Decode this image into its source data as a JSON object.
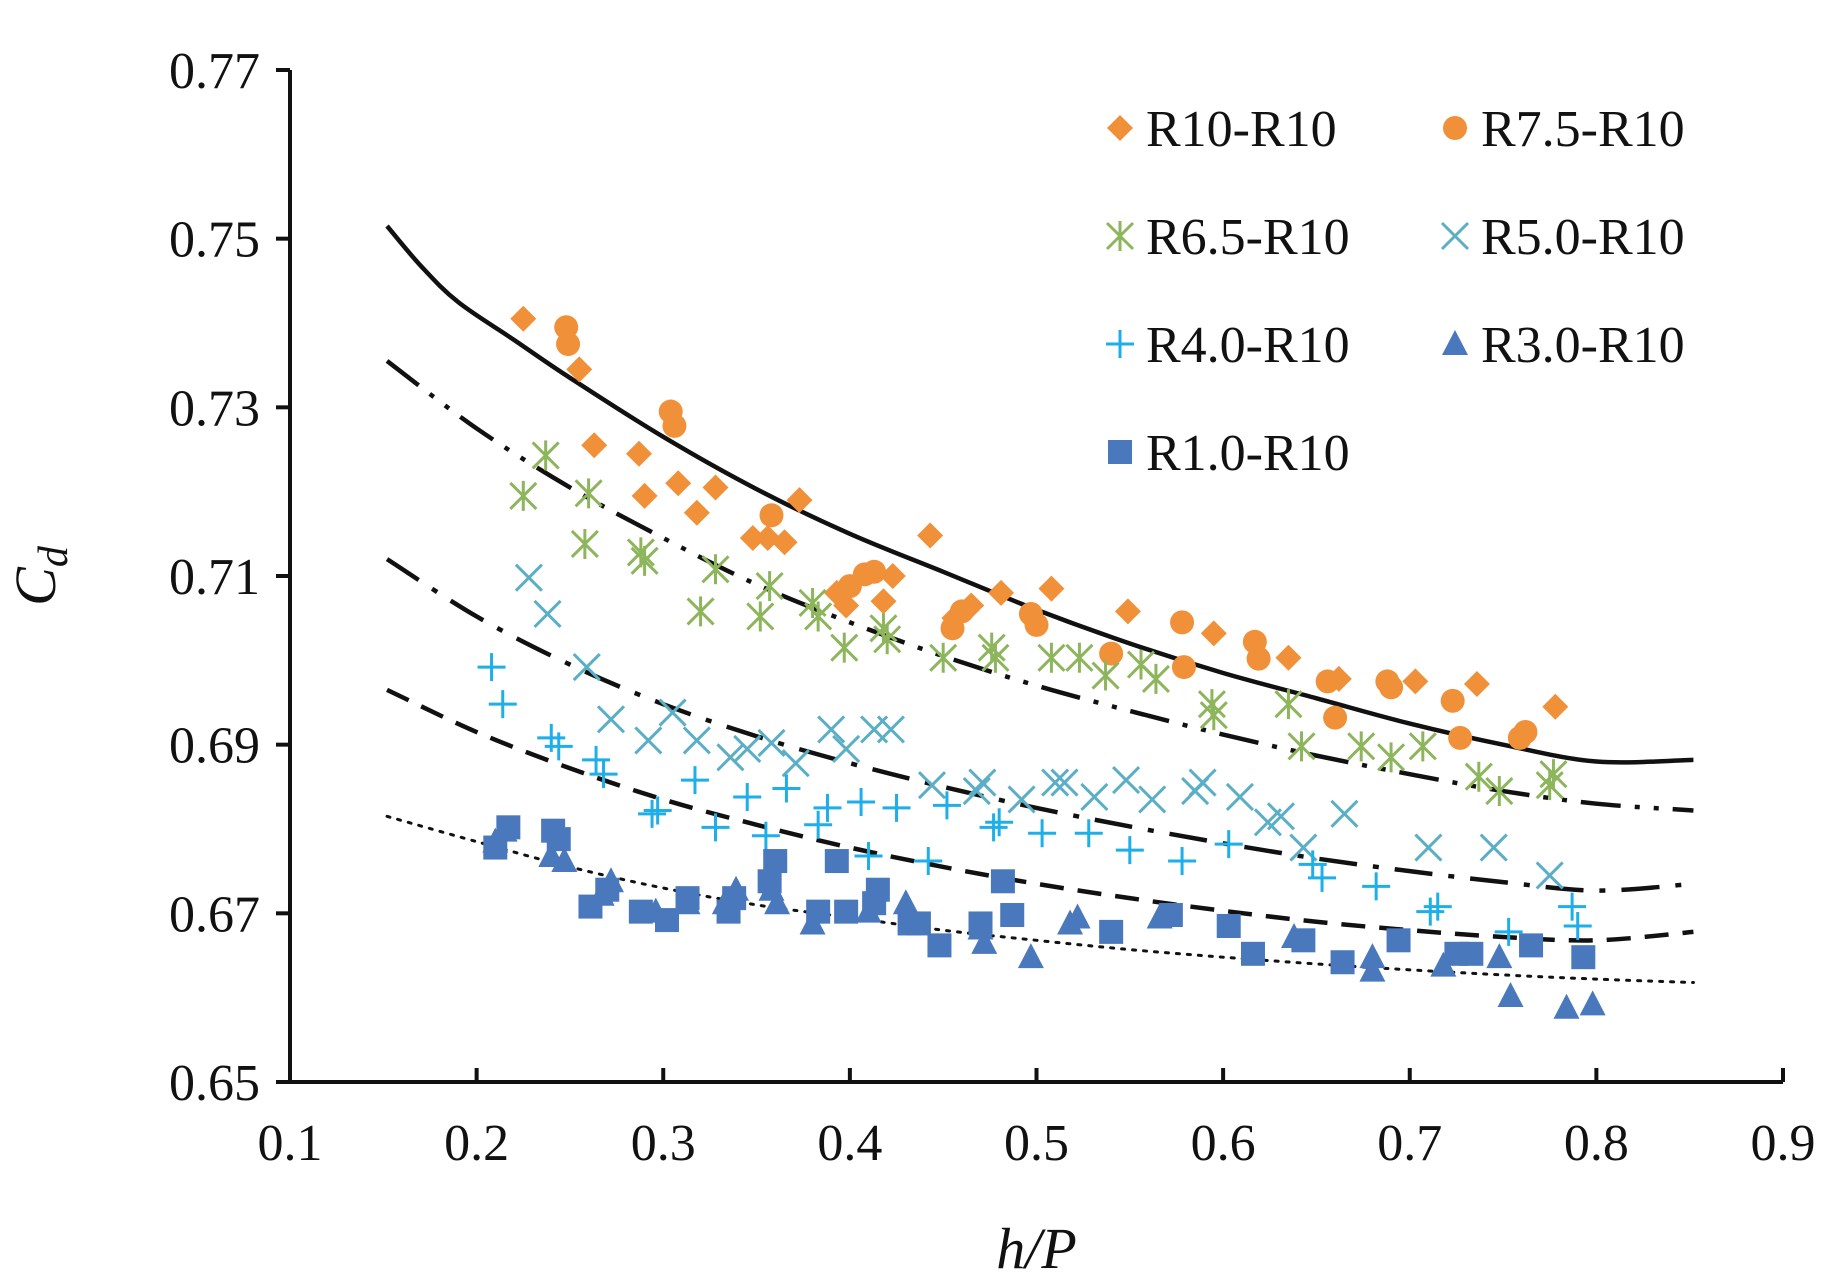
{
  "chart_data": {
    "type": "scatter",
    "title": "",
    "xlabel": "h/P",
    "ylabel": "C_d",
    "ylabel_main": "C",
    "ylabel_sub": "d",
    "xlim": [
      0.1,
      0.9
    ],
    "ylim": [
      0.65,
      0.77
    ],
    "xticks": [
      "0.1",
      "0.2",
      "0.3",
      "0.4",
      "0.5",
      "0.6",
      "0.7",
      "0.8",
      "0.9"
    ],
    "yticks": [
      "0.65",
      "0.67",
      "0.69",
      "0.71",
      "0.73",
      "0.75",
      "0.77"
    ],
    "grid": false,
    "legend_position": "top-right",
    "series": [
      {
        "name": "R10-R10",
        "marker": "diamond",
        "color": "#f0913a",
        "points": [
          [
            0.225,
            0.7405
          ],
          [
            0.255,
            0.7345
          ],
          [
            0.263,
            0.7255
          ],
          [
            0.287,
            0.7245
          ],
          [
            0.29,
            0.7195
          ],
          [
            0.308,
            0.721
          ],
          [
            0.318,
            0.7175
          ],
          [
            0.328,
            0.7205
          ],
          [
            0.348,
            0.7145
          ],
          [
            0.356,
            0.7145
          ],
          [
            0.365,
            0.714
          ],
          [
            0.373,
            0.719
          ],
          [
            0.393,
            0.708
          ],
          [
            0.398,
            0.7065
          ],
          [
            0.418,
            0.707
          ],
          [
            0.423,
            0.71
          ],
          [
            0.443,
            0.7148
          ],
          [
            0.456,
            0.705
          ],
          [
            0.465,
            0.7065
          ],
          [
            0.481,
            0.708
          ],
          [
            0.508,
            0.7085
          ],
          [
            0.549,
            0.7058
          ],
          [
            0.595,
            0.7032
          ],
          [
            0.635,
            0.7003
          ],
          [
            0.662,
            0.6978
          ],
          [
            0.703,
            0.6975
          ],
          [
            0.736,
            0.6972
          ],
          [
            0.778,
            0.6945
          ]
        ]
      },
      {
        "name": "R7.5-R10",
        "marker": "circle",
        "color": "#f0913a",
        "points": [
          [
            0.248,
            0.7395
          ],
          [
            0.249,
            0.7375
          ],
          [
            0.304,
            0.7295
          ],
          [
            0.306,
            0.7278
          ],
          [
            0.358,
            0.7172
          ],
          [
            0.4,
            0.7088
          ],
          [
            0.408,
            0.7102
          ],
          [
            0.413,
            0.7105
          ],
          [
            0.455,
            0.7038
          ],
          [
            0.46,
            0.7058
          ],
          [
            0.497,
            0.7055
          ],
          [
            0.5,
            0.7042
          ],
          [
            0.54,
            0.7008
          ],
          [
            0.578,
            0.7045
          ],
          [
            0.579,
            0.6992
          ],
          [
            0.617,
            0.7022
          ],
          [
            0.619,
            0.7002
          ],
          [
            0.656,
            0.6975
          ],
          [
            0.66,
            0.6932
          ],
          [
            0.688,
            0.6975
          ],
          [
            0.69,
            0.6968
          ],
          [
            0.723,
            0.6952
          ],
          [
            0.727,
            0.6908
          ],
          [
            0.759,
            0.6908
          ],
          [
            0.762,
            0.6915
          ]
        ]
      },
      {
        "name": "R6.5-R10",
        "marker": "asterisk",
        "color": "#8db65c",
        "points": [
          [
            0.225,
            0.7195
          ],
          [
            0.237,
            0.7243
          ],
          [
            0.258,
            0.7138
          ],
          [
            0.26,
            0.7198
          ],
          [
            0.288,
            0.7128
          ],
          [
            0.29,
            0.7118
          ],
          [
            0.32,
            0.7058
          ],
          [
            0.328,
            0.7108
          ],
          [
            0.352,
            0.7052
          ],
          [
            0.357,
            0.7088
          ],
          [
            0.38,
            0.7068
          ],
          [
            0.383,
            0.7052
          ],
          [
            0.397,
            0.7015
          ],
          [
            0.418,
            0.7038
          ],
          [
            0.42,
            0.7025
          ],
          [
            0.45,
            0.7003
          ],
          [
            0.476,
            0.7015
          ],
          [
            0.478,
            0.7003
          ],
          [
            0.508,
            0.7003
          ],
          [
            0.523,
            0.7003
          ],
          [
            0.537,
            0.6982
          ],
          [
            0.556,
            0.6995
          ],
          [
            0.564,
            0.6978
          ],
          [
            0.594,
            0.6948
          ],
          [
            0.595,
            0.6935
          ],
          [
            0.635,
            0.6948
          ],
          [
            0.642,
            0.6898
          ],
          [
            0.674,
            0.6898
          ],
          [
            0.69,
            0.6885
          ],
          [
            0.707,
            0.6898
          ],
          [
            0.737,
            0.6862
          ],
          [
            0.748,
            0.6845
          ],
          [
            0.775,
            0.6852
          ],
          [
            0.777,
            0.6865
          ]
        ]
      },
      {
        "name": "R5.0-R10",
        "marker": "x",
        "color": "#5aafc6",
        "points": [
          [
            0.228,
            0.7098
          ],
          [
            0.238,
            0.7055
          ],
          [
            0.259,
            0.6992
          ],
          [
            0.272,
            0.693
          ],
          [
            0.292,
            0.6905
          ],
          [
            0.305,
            0.6938
          ],
          [
            0.318,
            0.6905
          ],
          [
            0.336,
            0.6885
          ],
          [
            0.345,
            0.6895
          ],
          [
            0.358,
            0.6902
          ],
          [
            0.371,
            0.6878
          ],
          [
            0.39,
            0.6918
          ],
          [
            0.398,
            0.6895
          ],
          [
            0.413,
            0.6918
          ],
          [
            0.422,
            0.6918
          ],
          [
            0.444,
            0.6852
          ],
          [
            0.468,
            0.6845
          ],
          [
            0.471,
            0.6855
          ],
          [
            0.492,
            0.6835
          ],
          [
            0.51,
            0.6855
          ],
          [
            0.515,
            0.6855
          ],
          [
            0.531,
            0.6838
          ],
          [
            0.548,
            0.6858
          ],
          [
            0.562,
            0.6835
          ],
          [
            0.585,
            0.6845
          ],
          [
            0.589,
            0.6855
          ],
          [
            0.609,
            0.6838
          ],
          [
            0.624,
            0.6808
          ],
          [
            0.631,
            0.6815
          ],
          [
            0.643,
            0.6778
          ],
          [
            0.665,
            0.6818
          ],
          [
            0.71,
            0.6778
          ],
          [
            0.745,
            0.6778
          ],
          [
            0.775,
            0.6745
          ]
        ]
      },
      {
        "name": "R4.0-R10",
        "marker": "plus",
        "color": "#1eaee8",
        "points": [
          [
            0.208,
            0.6992
          ],
          [
            0.214,
            0.6948
          ],
          [
            0.24,
            0.6908
          ],
          [
            0.244,
            0.6898
          ],
          [
            0.264,
            0.6882
          ],
          [
            0.268,
            0.6865
          ],
          [
            0.294,
            0.6818
          ],
          [
            0.297,
            0.6822
          ],
          [
            0.317,
            0.6858
          ],
          [
            0.328,
            0.6802
          ],
          [
            0.345,
            0.6838
          ],
          [
            0.355,
            0.6792
          ],
          [
            0.366,
            0.6848
          ],
          [
            0.383,
            0.6805
          ],
          [
            0.388,
            0.6825
          ],
          [
            0.406,
            0.6832
          ],
          [
            0.41,
            0.6768
          ],
          [
            0.425,
            0.6825
          ],
          [
            0.442,
            0.6762
          ],
          [
            0.452,
            0.6828
          ],
          [
            0.477,
            0.6802
          ],
          [
            0.48,
            0.6808
          ],
          [
            0.503,
            0.6795
          ],
          [
            0.528,
            0.6795
          ],
          [
            0.55,
            0.6775
          ],
          [
            0.578,
            0.6762
          ],
          [
            0.603,
            0.6782
          ],
          [
            0.648,
            0.6758
          ],
          [
            0.653,
            0.6742
          ],
          [
            0.682,
            0.6732
          ],
          [
            0.711,
            0.6702
          ],
          [
            0.715,
            0.6708
          ],
          [
            0.753,
            0.6678
          ],
          [
            0.787,
            0.6708
          ],
          [
            0.79,
            0.6685
          ]
        ]
      },
      {
        "name": "R3.0-R10",
        "marker": "triangle",
        "color": "#4a78bd",
        "points": [
          [
            0.21,
            0.6785
          ],
          [
            0.215,
            0.6798
          ],
          [
            0.24,
            0.6768
          ],
          [
            0.247,
            0.6762
          ],
          [
            0.267,
            0.6722
          ],
          [
            0.272,
            0.6738
          ],
          [
            0.296,
            0.6702
          ],
          [
            0.313,
            0.6712
          ],
          [
            0.333,
            0.6712
          ],
          [
            0.339,
            0.6728
          ],
          [
            0.358,
            0.6728
          ],
          [
            0.361,
            0.6712
          ],
          [
            0.38,
            0.6688
          ],
          [
            0.41,
            0.6702
          ],
          [
            0.43,
            0.6712
          ],
          [
            0.433,
            0.6698
          ],
          [
            0.47,
            0.6682
          ],
          [
            0.472,
            0.6665
          ],
          [
            0.497,
            0.6648
          ],
          [
            0.518,
            0.6688
          ],
          [
            0.522,
            0.6695
          ],
          [
            0.566,
            0.6695
          ],
          [
            0.638,
            0.6672
          ],
          [
            0.68,
            0.6648
          ],
          [
            0.68,
            0.6632
          ],
          [
            0.718,
            0.6638
          ],
          [
            0.748,
            0.6648
          ],
          [
            0.754,
            0.6602
          ],
          [
            0.784,
            0.6588
          ],
          [
            0.798,
            0.6592
          ]
        ]
      },
      {
        "name": "R1.0-R10",
        "marker": "square",
        "color": "#4a78bd",
        "points": [
          [
            0.21,
            0.6778
          ],
          [
            0.217,
            0.6802
          ],
          [
            0.241,
            0.6798
          ],
          [
            0.244,
            0.6788
          ],
          [
            0.261,
            0.6708
          ],
          [
            0.27,
            0.6728
          ],
          [
            0.288,
            0.6702
          ],
          [
            0.302,
            0.6692
          ],
          [
            0.313,
            0.6718
          ],
          [
            0.335,
            0.6702
          ],
          [
            0.338,
            0.6718
          ],
          [
            0.357,
            0.6738
          ],
          [
            0.36,
            0.6762
          ],
          [
            0.383,
            0.6702
          ],
          [
            0.393,
            0.6762
          ],
          [
            0.398,
            0.6702
          ],
          [
            0.413,
            0.6712
          ],
          [
            0.415,
            0.6728
          ],
          [
            0.432,
            0.6688
          ],
          [
            0.437,
            0.6688
          ],
          [
            0.448,
            0.6662
          ],
          [
            0.47,
            0.6688
          ],
          [
            0.482,
            0.6738
          ],
          [
            0.487,
            0.6698
          ],
          [
            0.54,
            0.6678
          ],
          [
            0.572,
            0.6698
          ],
          [
            0.603,
            0.6685
          ],
          [
            0.616,
            0.6652
          ],
          [
            0.643,
            0.6668
          ],
          [
            0.664,
            0.6642
          ],
          [
            0.694,
            0.6668
          ],
          [
            0.725,
            0.6652
          ],
          [
            0.733,
            0.6652
          ],
          [
            0.765,
            0.6662
          ],
          [
            0.793,
            0.6648
          ]
        ]
      }
    ],
    "curves": [
      {
        "name": "fit-r10-solid",
        "style": "solid",
        "color": "#111111",
        "x": [
          0.152,
          0.17,
          0.19,
          0.22,
          0.25,
          0.3,
          0.35,
          0.4,
          0.45,
          0.5,
          0.55,
          0.6,
          0.65,
          0.7,
          0.75,
          0.8,
          0.852
        ],
        "y": [
          0.7515,
          0.7468,
          0.7425,
          0.738,
          0.7335,
          0.7265,
          0.7203,
          0.715,
          0.7105,
          0.706,
          0.702,
          0.6985,
          0.6955,
          0.6925,
          0.69,
          0.688,
          0.6882
        ]
      },
      {
        "name": "fit-r65-dashdotdot",
        "style": "dashdotdot",
        "color": "#111111",
        "x": [
          0.152,
          0.2,
          0.25,
          0.3,
          0.35,
          0.4,
          0.45,
          0.5,
          0.55,
          0.6,
          0.65,
          0.7,
          0.75,
          0.8,
          0.852
        ],
        "y": [
          0.7355,
          0.7275,
          0.7205,
          0.7145,
          0.709,
          0.7045,
          0.7005,
          0.697,
          0.694,
          0.6912,
          0.6887,
          0.6865,
          0.6845,
          0.683,
          0.6822
        ]
      },
      {
        "name": "fit-r50-dashdot",
        "style": "dashdot",
        "color": "#111111",
        "x": [
          0.152,
          0.2,
          0.25,
          0.3,
          0.35,
          0.4,
          0.45,
          0.5,
          0.55,
          0.6,
          0.65,
          0.7,
          0.75,
          0.8,
          0.852
        ],
        "y": [
          0.712,
          0.7052,
          0.6995,
          0.6948,
          0.691,
          0.6878,
          0.685,
          0.6825,
          0.6803,
          0.6783,
          0.6765,
          0.675,
          0.6737,
          0.6727,
          0.6735
        ]
      },
      {
        "name": "fit-r40-dashed",
        "style": "dashed",
        "color": "#111111",
        "x": [
          0.152,
          0.2,
          0.25,
          0.3,
          0.35,
          0.4,
          0.45,
          0.5,
          0.55,
          0.6,
          0.65,
          0.7,
          0.75,
          0.8,
          0.852
        ],
        "y": [
          0.6965,
          0.6915,
          0.6872,
          0.6835,
          0.6805,
          0.6778,
          0.6755,
          0.6735,
          0.6718,
          0.6703,
          0.669,
          0.668,
          0.6672,
          0.6668,
          0.6678
        ]
      },
      {
        "name": "fit-r10-dotted",
        "style": "dotted",
        "color": "#111111",
        "x": [
          0.152,
          0.2,
          0.25,
          0.3,
          0.35,
          0.4,
          0.45,
          0.5,
          0.55,
          0.6,
          0.65,
          0.7,
          0.75,
          0.8,
          0.852
        ],
        "y": [
          0.6815,
          0.6785,
          0.6755,
          0.673,
          0.671,
          0.6695,
          0.668,
          0.6668,
          0.6657,
          0.6648,
          0.664,
          0.6633,
          0.6627,
          0.6622,
          0.6618
        ]
      }
    ]
  }
}
